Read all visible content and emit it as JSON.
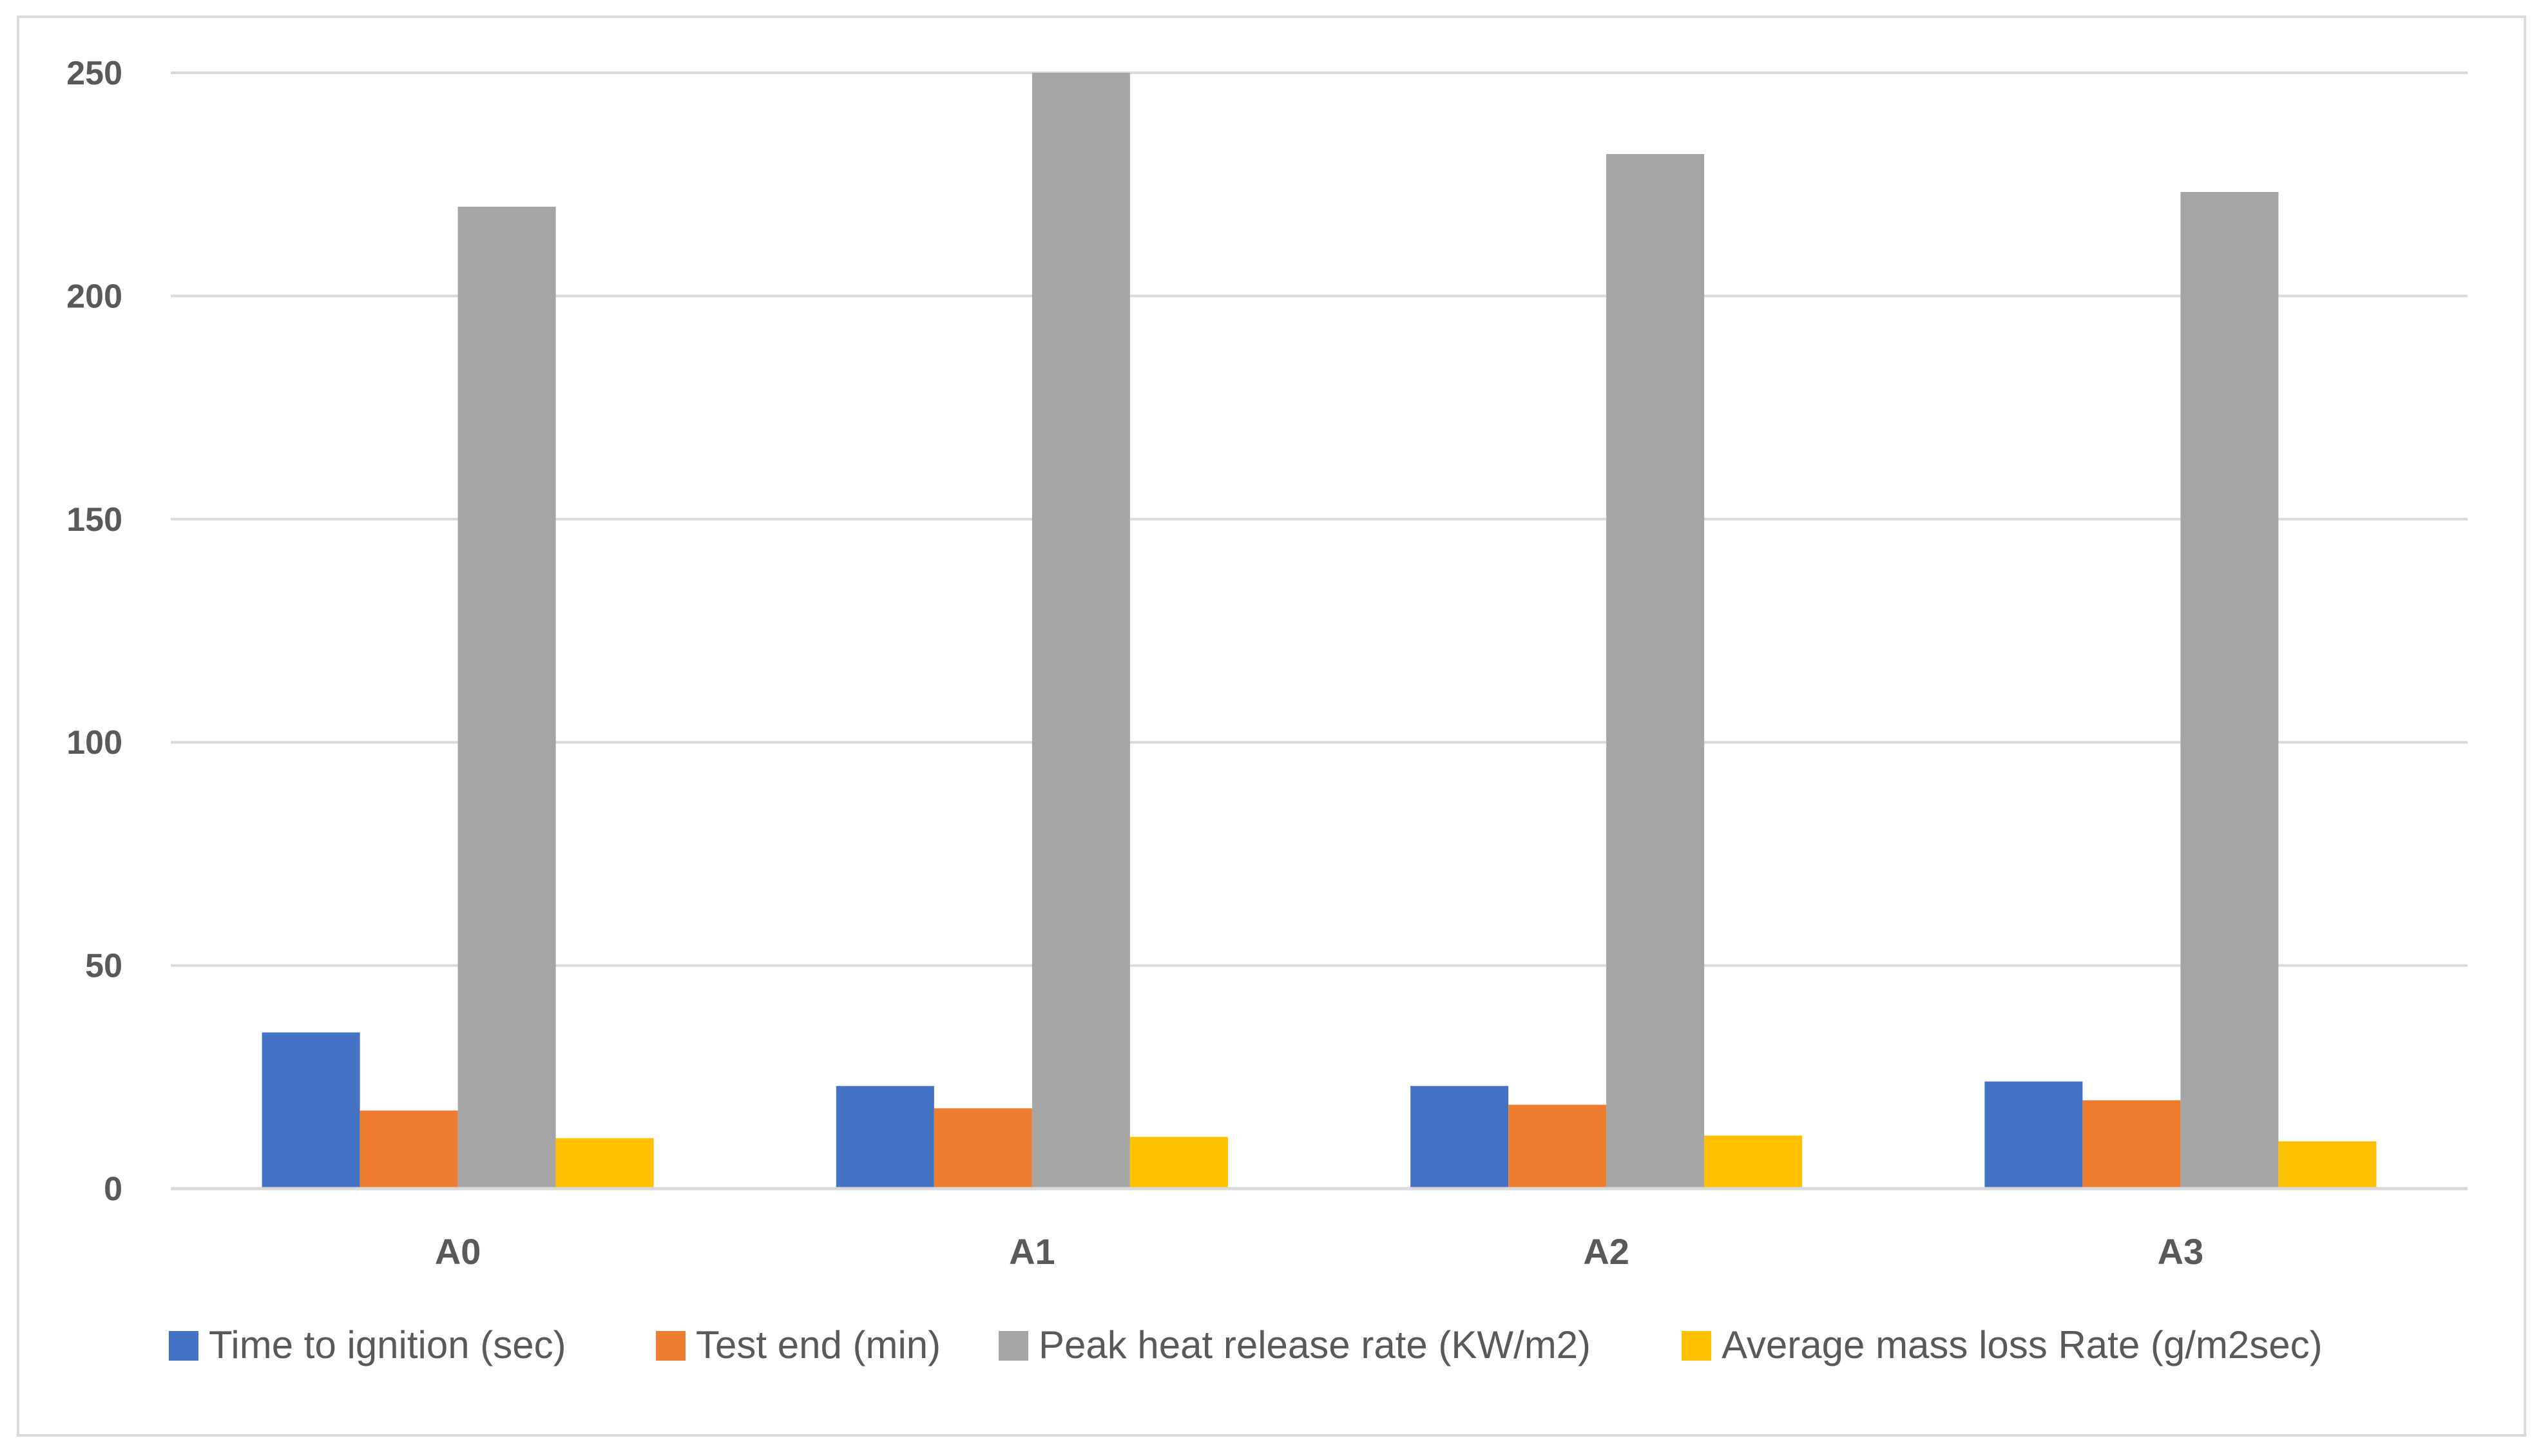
{
  "chart_data": {
    "type": "bar",
    "title": "",
    "xlabel": "",
    "ylabel": "",
    "categories": [
      "A0",
      "A1",
      "A2",
      "A3"
    ],
    "series": [
      {
        "name": "Time to ignition (sec)",
        "color": "#4472c4",
        "values": [
          35,
          23,
          23,
          24
        ]
      },
      {
        "name": "Test end (min)",
        "color": "#ed7d31",
        "values": [
          17.5,
          18,
          18.8,
          19.8
        ]
      },
      {
        "name": "Peak heat release rate (KW/m2)",
        "color": "#a5a5a5",
        "values": [
          220,
          250,
          231.8,
          223.3
        ]
      },
      {
        "name": "Average mass loss Rate (g/m2sec)",
        "color": "#ffc000",
        "values": [
          11.3,
          11.6,
          11.9,
          10.6
        ]
      }
    ],
    "ylim": [
      0,
      250
    ],
    "yticks": [
      0,
      50,
      100,
      150,
      200,
      250
    ],
    "grid": true,
    "legend_position": "bottom"
  }
}
